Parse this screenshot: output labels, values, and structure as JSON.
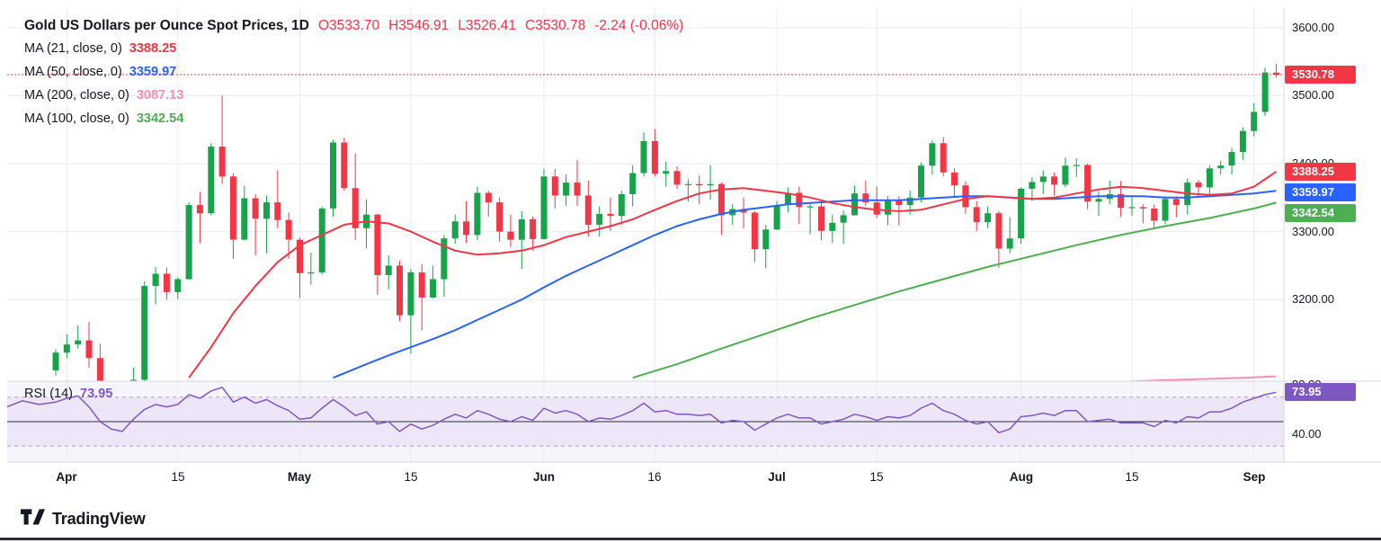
{
  "header": {
    "title": "Gold US Dollars per Ounce Spot Prices, 1D",
    "ohlc": {
      "open": "O3533.70",
      "high": "H3546.91",
      "low": "L3526.41",
      "close": "C3530.78",
      "change": "-2.24 (-0.06%)"
    },
    "indicators": [
      {
        "label": "MA (21, close, 0)",
        "value": "3388.25",
        "color": "#f23645"
      },
      {
        "label": "MA (50, close, 0)",
        "value": "3359.97",
        "color": "#2962ff"
      },
      {
        "label": "MA (200, close, 0)",
        "value": "3087.13",
        "color": "#f48fb1"
      },
      {
        "label": "MA (100, close, 0)",
        "value": "3342.54",
        "color": "#4caf50"
      }
    ]
  },
  "rsi_pane": {
    "label": "RSI (14)",
    "value": "73.95",
    "color": "#7e57c2"
  },
  "axes": {
    "price_ticks": [
      {
        "label": "3600.00",
        "value": 3600
      },
      {
        "label": "3500.00",
        "value": 3500
      },
      {
        "label": "3400.00",
        "value": 3400
      },
      {
        "label": "3300.00",
        "value": 3300
      },
      {
        "label": "3200.00",
        "value": 3200
      }
    ],
    "rsi_ticks": [
      {
        "label": "80.00",
        "value": 80
      },
      {
        "label": "40.00",
        "value": 40
      }
    ]
  },
  "badges": [
    {
      "text": "3530.78",
      "color": "#f23645",
      "price": 3530.78
    },
    {
      "text": "3388.25",
      "color": "#f23645",
      "price": 3388.25
    },
    {
      "text": "3359.97",
      "color": "#2962ff",
      "price": 3359.97
    },
    {
      "text": "3342.54",
      "color": "#4caf50",
      "price": 3342.54
    },
    {
      "text": "73.95",
      "color": "#7e57c2",
      "rsi": 73.95
    }
  ],
  "footer": {
    "brand": "TradingView"
  },
  "chart_data": {
    "type": "candlestick",
    "title": "Gold US Dollars per Ounce Spot Prices, 1D",
    "timeframe": "1D",
    "last_bar": {
      "open": 3533.7,
      "high": 3546.91,
      "low": 3526.41,
      "close": 3530.78,
      "change": -2.24,
      "change_pct": -0.06
    },
    "ylim": [
      3080,
      3630
    ],
    "price_gridlines": [
      3200,
      3300,
      3400,
      3500,
      3600
    ],
    "current_price_line": 3530.78,
    "colors": {
      "up": "#16a34a",
      "down": "#f23645"
    },
    "candles": [
      [
        3096,
        3127,
        3088,
        3122
      ],
      [
        3122,
        3149,
        3114,
        3134
      ],
      [
        3134,
        3162,
        3128,
        3140
      ],
      [
        3140,
        3167,
        3100,
        3114
      ],
      [
        3114,
        3135,
        3015,
        3038
      ],
      [
        3038,
        3056,
        2971,
        2982
      ],
      [
        2982,
        3022,
        2960,
        2990
      ],
      [
        2990,
        3100,
        2970,
        3082
      ],
      [
        3082,
        3227,
        3072,
        3220
      ],
      [
        3220,
        3248,
        3193,
        3238
      ],
      [
        3238,
        3247,
        3200,
        3211
      ],
      [
        3211,
        3233,
        3201,
        3230
      ],
      [
        3230,
        3343,
        3229,
        3339
      ],
      [
        3339,
        3358,
        3283,
        3327
      ],
      [
        3327,
        3430,
        3324,
        3425
      ],
      [
        3425,
        3500,
        3370,
        3381
      ],
      [
        3381,
        3386,
        3260,
        3288
      ],
      [
        3288,
        3367,
        3287,
        3349
      ],
      [
        3349,
        3355,
        3265,
        3319
      ],
      [
        3319,
        3353,
        3268,
        3343
      ],
      [
        3343,
        3390,
        3305,
        3317
      ],
      [
        3317,
        3328,
        3260,
        3288
      ],
      [
        3288,
        3291,
        3202,
        3239
      ],
      [
        3239,
        3269,
        3222,
        3240
      ],
      [
        3240,
        3337,
        3237,
        3334
      ],
      [
        3334,
        3435,
        3322,
        3431
      ],
      [
        3431,
        3438,
        3360,
        3364
      ],
      [
        3364,
        3415,
        3288,
        3305
      ],
      [
        3305,
        3347,
        3275,
        3325
      ],
      [
        3325,
        3326,
        3207,
        3236
      ],
      [
        3236,
        3265,
        3215,
        3250
      ],
      [
        3250,
        3257,
        3168,
        3177
      ],
      [
        3177,
        3245,
        3120,
        3240
      ],
      [
        3240,
        3252,
        3155,
        3203
      ],
      [
        3203,
        3250,
        3202,
        3230
      ],
      [
        3230,
        3295,
        3204,
        3290
      ],
      [
        3290,
        3325,
        3282,
        3315
      ],
      [
        3315,
        3345,
        3283,
        3295
      ],
      [
        3295,
        3366,
        3287,
        3357
      ],
      [
        3357,
        3360,
        3322,
        3343
      ],
      [
        3343,
        3350,
        3285,
        3300
      ],
      [
        3300,
        3325,
        3277,
        3288
      ],
      [
        3288,
        3330,
        3245,
        3318
      ],
      [
        3318,
        3322,
        3272,
        3289
      ],
      [
        3289,
        3392,
        3288,
        3381
      ],
      [
        3381,
        3392,
        3334,
        3353
      ],
      [
        3353,
        3384,
        3338,
        3372
      ],
      [
        3372,
        3405,
        3338,
        3353
      ],
      [
        3353,
        3375,
        3293,
        3310
      ],
      [
        3310,
        3337,
        3293,
        3326
      ],
      [
        3326,
        3350,
        3301,
        3323
      ],
      [
        3323,
        3360,
        3310,
        3355
      ],
      [
        3355,
        3398,
        3337,
        3386
      ],
      [
        3386,
        3446,
        3381,
        3433
      ],
      [
        3433,
        3451,
        3381,
        3385
      ],
      [
        3385,
        3403,
        3366,
        3389
      ],
      [
        3389,
        3396,
        3363,
        3369
      ],
      [
        3369,
        3377,
        3344,
        3370
      ],
      [
        3370,
        3383,
        3340,
        3368
      ],
      [
        3368,
        3398,
        3347,
        3370
      ],
      [
        3370,
        3372,
        3295,
        3324
      ],
      [
        3324,
        3340,
        3310,
        3333
      ],
      [
        3333,
        3350,
        3305,
        3328
      ],
      [
        3328,
        3330,
        3255,
        3274
      ],
      [
        3274,
        3310,
        3246,
        3303
      ],
      [
        3303,
        3345,
        3302,
        3339
      ],
      [
        3339,
        3365,
        3328,
        3357
      ],
      [
        3357,
        3366,
        3311,
        3336
      ],
      [
        3336,
        3343,
        3296,
        3337
      ],
      [
        3337,
        3345,
        3287,
        3301
      ],
      [
        3301,
        3325,
        3283,
        3313
      ],
      [
        3313,
        3331,
        3282,
        3324
      ],
      [
        3324,
        3368,
        3323,
        3356
      ],
      [
        3356,
        3375,
        3338,
        3343
      ],
      [
        3343,
        3366,
        3320,
        3325
      ],
      [
        3325,
        3352,
        3309,
        3347
      ],
      [
        3347,
        3352,
        3309,
        3339
      ],
      [
        3339,
        3360,
        3325,
        3350
      ],
      [
        3350,
        3402,
        3343,
        3397
      ],
      [
        3397,
        3434,
        3384,
        3430
      ],
      [
        3430,
        3439,
        3381,
        3387
      ],
      [
        3387,
        3393,
        3350,
        3368
      ],
      [
        3368,
        3374,
        3326,
        3336
      ],
      [
        3336,
        3345,
        3301,
        3314
      ],
      [
        3314,
        3337,
        3305,
        3327
      ],
      [
        3327,
        3330,
        3247,
        3275
      ],
      [
        3275,
        3321,
        3268,
        3290
      ],
      [
        3290,
        3365,
        3282,
        3363
      ],
      [
        3363,
        3380,
        3345,
        3373
      ],
      [
        3373,
        3390,
        3355,
        3381
      ],
      [
        3381,
        3387,
        3353,
        3369
      ],
      [
        3369,
        3409,
        3365,
        3397
      ],
      [
        3397,
        3408,
        3380,
        3398
      ],
      [
        3398,
        3400,
        3333,
        3344
      ],
      [
        3344,
        3360,
        3323,
        3348
      ],
      [
        3348,
        3375,
        3340,
        3355
      ],
      [
        3355,
        3374,
        3322,
        3335
      ],
      [
        3335,
        3352,
        3323,
        3336
      ],
      [
        3336,
        3340,
        3312,
        3334
      ],
      [
        3334,
        3340,
        3306,
        3316
      ],
      [
        3316,
        3352,
        3311,
        3348
      ],
      [
        3348,
        3352,
        3321,
        3339
      ],
      [
        3339,
        3378,
        3325,
        3372
      ],
      [
        3372,
        3376,
        3350,
        3365
      ],
      [
        3365,
        3398,
        3355,
        3393
      ],
      [
        3393,
        3404,
        3384,
        3397
      ],
      [
        3397,
        3423,
        3384,
        3417
      ],
      [
        3417,
        3453,
        3405,
        3448
      ],
      [
        3448,
        3489,
        3440,
        3476
      ],
      [
        3476,
        3541,
        3470,
        3534
      ],
      [
        3533.7,
        3546.91,
        3526.41,
        3530.78
      ]
    ],
    "overlays": [
      {
        "name": "MA21",
        "color": "#f23645",
        "last": 3388.25,
        "points": [
          [
            12,
            3085
          ],
          [
            14,
            3130
          ],
          [
            16,
            3180
          ],
          [
            18,
            3220
          ],
          [
            20,
            3255
          ],
          [
            22,
            3280
          ],
          [
            24,
            3295
          ],
          [
            26,
            3310
          ],
          [
            28,
            3315
          ],
          [
            30,
            3312
          ],
          [
            32,
            3300
          ],
          [
            34,
            3285
          ],
          [
            36,
            3272
          ],
          [
            38,
            3266
          ],
          [
            40,
            3268
          ],
          [
            42,
            3272
          ],
          [
            44,
            3280
          ],
          [
            46,
            3292
          ],
          [
            48,
            3300
          ],
          [
            50,
            3308
          ],
          [
            52,
            3318
          ],
          [
            54,
            3332
          ],
          [
            56,
            3345
          ],
          [
            58,
            3356
          ],
          [
            60,
            3362
          ],
          [
            62,
            3364
          ],
          [
            64,
            3360
          ],
          [
            66,
            3356
          ],
          [
            68,
            3350
          ],
          [
            70,
            3342
          ],
          [
            72,
            3336
          ],
          [
            74,
            3332
          ],
          [
            76,
            3330
          ],
          [
            78,
            3332
          ],
          [
            80,
            3340
          ],
          [
            82,
            3348
          ],
          [
            84,
            3352
          ],
          [
            86,
            3350
          ],
          [
            88,
            3348
          ],
          [
            90,
            3350
          ],
          [
            92,
            3356
          ],
          [
            94,
            3362
          ],
          [
            96,
            3366
          ],
          [
            98,
            3364
          ],
          [
            100,
            3360
          ],
          [
            102,
            3356
          ],
          [
            104,
            3354
          ],
          [
            106,
            3356
          ],
          [
            108,
            3366
          ],
          [
            110,
            3388.25
          ]
        ]
      },
      {
        "name": "MA50",
        "color": "#2962ff",
        "last": 3359.97,
        "points": [
          [
            25,
            3085
          ],
          [
            28,
            3105
          ],
          [
            30,
            3118
          ],
          [
            32,
            3130
          ],
          [
            34,
            3142
          ],
          [
            36,
            3155
          ],
          [
            38,
            3170
          ],
          [
            40,
            3185
          ],
          [
            42,
            3200
          ],
          [
            44,
            3218
          ],
          [
            46,
            3235
          ],
          [
            48,
            3250
          ],
          [
            50,
            3265
          ],
          [
            52,
            3280
          ],
          [
            54,
            3295
          ],
          [
            56,
            3308
          ],
          [
            58,
            3318
          ],
          [
            60,
            3326
          ],
          [
            62,
            3332
          ],
          [
            64,
            3336
          ],
          [
            66,
            3340
          ],
          [
            68,
            3342
          ],
          [
            70,
            3344
          ],
          [
            72,
            3346
          ],
          [
            74,
            3346
          ],
          [
            76,
            3346
          ],
          [
            78,
            3348
          ],
          [
            80,
            3350
          ],
          [
            82,
            3352
          ],
          [
            84,
            3352
          ],
          [
            86,
            3350
          ],
          [
            88,
            3348
          ],
          [
            90,
            3348
          ],
          [
            92,
            3350
          ],
          [
            94,
            3352
          ],
          [
            96,
            3352
          ],
          [
            98,
            3352
          ],
          [
            100,
            3350
          ],
          [
            102,
            3350
          ],
          [
            104,
            3352
          ],
          [
            106,
            3354
          ],
          [
            108,
            3356
          ],
          [
            110,
            3359.97
          ]
        ]
      },
      {
        "name": "MA100",
        "color": "#4caf50",
        "last": 3342.54,
        "points": [
          [
            52,
            3085
          ],
          [
            56,
            3105
          ],
          [
            60,
            3128
          ],
          [
            64,
            3150
          ],
          [
            68,
            3172
          ],
          [
            72,
            3192
          ],
          [
            76,
            3212
          ],
          [
            80,
            3230
          ],
          [
            84,
            3248
          ],
          [
            88,
            3264
          ],
          [
            92,
            3280
          ],
          [
            96,
            3295
          ],
          [
            100,
            3308
          ],
          [
            104,
            3320
          ],
          [
            108,
            3334
          ],
          [
            110,
            3342.54
          ]
        ]
      },
      {
        "name": "MA200",
        "color": "#f48fb1",
        "last": 3087.13,
        "points": [
          [
            95,
            3078
          ],
          [
            99,
            3081
          ],
          [
            103,
            3083
          ],
          [
            107,
            3085
          ],
          [
            110,
            3087.13
          ]
        ]
      }
    ],
    "rsi": {
      "name": "RSI (14)",
      "color": "#7e57c2",
      "last": 73.95,
      "upper": 70,
      "lower": 30,
      "mid": 50,
      "ylim": [
        17,
        83
      ],
      "lead_points": [
        [
          -4.4,
          62
        ],
        [
          -3,
          67
        ],
        [
          -1.5,
          64
        ]
      ],
      "values": [
        66,
        69,
        71,
        62,
        50,
        44,
        42,
        52,
        60,
        64,
        62,
        64,
        72,
        69,
        75,
        78,
        66,
        70,
        65,
        68,
        63,
        59,
        52,
        53,
        61,
        68,
        62,
        55,
        58,
        48,
        50,
        42,
        48,
        44,
        47,
        52,
        56,
        53,
        59,
        56,
        52,
        50,
        54,
        51,
        61,
        57,
        59,
        56,
        50,
        53,
        52,
        55,
        59,
        65,
        58,
        59,
        56,
        56,
        55,
        56,
        49,
        51,
        50,
        43,
        48,
        53,
        56,
        53,
        53,
        48,
        50,
        52,
        56,
        54,
        51,
        54,
        53,
        55,
        61,
        65,
        59,
        56,
        51,
        48,
        50,
        41,
        44,
        54,
        55,
        57,
        55,
        59,
        59,
        50,
        51,
        52,
        49,
        49,
        49,
        46,
        51,
        49,
        54,
        53,
        58,
        58,
        61,
        66,
        69,
        72,
        73.95
      ]
    },
    "time_labels": [
      {
        "label": "Apr",
        "index": 1
      },
      {
        "label": "15",
        "index": 11
      },
      {
        "label": "May",
        "index": 22
      },
      {
        "label": "15",
        "index": 32
      },
      {
        "label": "Jun",
        "index": 44
      },
      {
        "label": "16",
        "index": 54
      },
      {
        "label": "Jul",
        "index": 65
      },
      {
        "label": "15",
        "index": 74
      },
      {
        "label": "Aug",
        "index": 87
      },
      {
        "label": "15",
        "index": 97
      },
      {
        "label": "Sep",
        "index": 108
      }
    ]
  }
}
